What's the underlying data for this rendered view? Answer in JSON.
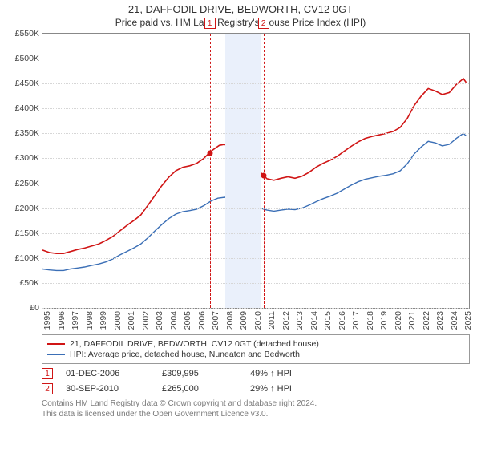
{
  "title_line1": "21, DAFFODIL DRIVE, BEDWORTH, CV12 0GT",
  "title_line2": "Price paid vs. HM Land Registry's House Price Index (HPI)",
  "chart": {
    "background_color": "#ffffff",
    "border_color": "#888888",
    "grid_color": "#d6d6d6",
    "yticks": [
      0,
      50,
      100,
      150,
      200,
      250,
      300,
      350,
      400,
      450,
      500,
      550
    ],
    "ytick_labels": [
      "£0",
      "£50K",
      "£100K",
      "£150K",
      "£200K",
      "£250K",
      "£300K",
      "£350K",
      "£400K",
      "£450K",
      "£500K",
      "£550K"
    ],
    "ylim": [
      0,
      550
    ],
    "x_years": [
      1995,
      1996,
      1997,
      1998,
      1999,
      2000,
      2001,
      2002,
      2003,
      2004,
      2005,
      2006,
      2007,
      2008,
      2009,
      2010,
      2011,
      2012,
      2013,
      2014,
      2015,
      2016,
      2017,
      2018,
      2019,
      2020,
      2021,
      2022,
      2023,
      2024,
      2025
    ],
    "xlim": [
      1995,
      2025.4
    ],
    "euroband": {
      "start": 2008.0,
      "end": 2010.6,
      "fill": "#eaf0fb"
    },
    "series": [
      {
        "id": "price_paid",
        "color": "#d01515",
        "width": 1.6,
        "label": "21, DAFFODIL DRIVE, BEDWORTH, CV12 0GT (detached house)",
        "points": [
          [
            1995.0,
            116
          ],
          [
            1995.5,
            111
          ],
          [
            1996.0,
            109
          ],
          [
            1996.5,
            109
          ],
          [
            1997.0,
            113
          ],
          [
            1997.5,
            117
          ],
          [
            1998.0,
            120
          ],
          [
            1998.5,
            124
          ],
          [
            1999.0,
            128
          ],
          [
            1999.5,
            135
          ],
          [
            2000.0,
            143
          ],
          [
            2000.5,
            154
          ],
          [
            2001.0,
            165
          ],
          [
            2001.5,
            175
          ],
          [
            2002.0,
            186
          ],
          [
            2002.5,
            205
          ],
          [
            2003.0,
            225
          ],
          [
            2003.5,
            245
          ],
          [
            2004.0,
            262
          ],
          [
            2004.5,
            275
          ],
          [
            2005.0,
            282
          ],
          [
            2005.5,
            285
          ],
          [
            2006.0,
            290
          ],
          [
            2006.5,
            300
          ],
          [
            2007.0,
            314
          ],
          [
            2007.3,
            320
          ],
          [
            2007.6,
            326
          ],
          [
            2008.0,
            328
          ],
          [
            2008.3,
            320
          ],
          [
            2008.6,
            302
          ],
          [
            2009.0,
            275
          ],
          [
            2009.4,
            268
          ],
          [
            2009.8,
            275
          ],
          [
            2010.2,
            278
          ],
          [
            2010.6,
            270
          ],
          [
            2011.0,
            259
          ],
          [
            2011.5,
            256
          ],
          [
            2012.0,
            260
          ],
          [
            2012.5,
            263
          ],
          [
            2013.0,
            260
          ],
          [
            2013.5,
            264
          ],
          [
            2014.0,
            272
          ],
          [
            2014.5,
            282
          ],
          [
            2015.0,
            290
          ],
          [
            2015.5,
            296
          ],
          [
            2016.0,
            304
          ],
          [
            2016.5,
            314
          ],
          [
            2017.0,
            324
          ],
          [
            2017.5,
            333
          ],
          [
            2018.0,
            340
          ],
          [
            2018.5,
            344
          ],
          [
            2019.0,
            347
          ],
          [
            2019.5,
            350
          ],
          [
            2020.0,
            354
          ],
          [
            2020.5,
            362
          ],
          [
            2021.0,
            380
          ],
          [
            2021.5,
            406
          ],
          [
            2022.0,
            425
          ],
          [
            2022.5,
            440
          ],
          [
            2023.0,
            435
          ],
          [
            2023.5,
            428
          ],
          [
            2024.0,
            432
          ],
          [
            2024.5,
            448
          ],
          [
            2025.0,
            460
          ],
          [
            2025.2,
            452
          ]
        ]
      },
      {
        "id": "hpi",
        "color": "#3b6fb6",
        "width": 1.4,
        "label": "HPI: Average price, detached house, Nuneaton and Bedworth",
        "points": [
          [
            1995.0,
            78
          ],
          [
            1995.5,
            76
          ],
          [
            1996.0,
            75
          ],
          [
            1996.5,
            75
          ],
          [
            1997.0,
            78
          ],
          [
            1997.5,
            80
          ],
          [
            1998.0,
            82
          ],
          [
            1998.5,
            85
          ],
          [
            1999.0,
            88
          ],
          [
            1999.5,
            92
          ],
          [
            2000.0,
            98
          ],
          [
            2000.5,
            106
          ],
          [
            2001.0,
            113
          ],
          [
            2001.5,
            120
          ],
          [
            2002.0,
            128
          ],
          [
            2002.5,
            140
          ],
          [
            2003.0,
            154
          ],
          [
            2003.5,
            167
          ],
          [
            2004.0,
            179
          ],
          [
            2004.5,
            188
          ],
          [
            2005.0,
            193
          ],
          [
            2005.5,
            195
          ],
          [
            2006.0,
            198
          ],
          [
            2006.5,
            205
          ],
          [
            2007.0,
            214
          ],
          [
            2007.5,
            220
          ],
          [
            2008.0,
            222
          ],
          [
            2008.5,
            214
          ],
          [
            2009.0,
            195
          ],
          [
            2009.5,
            192
          ],
          [
            2010.0,
            198
          ],
          [
            2010.5,
            200
          ],
          [
            2011.0,
            196
          ],
          [
            2011.5,
            194
          ],
          [
            2012.0,
            196
          ],
          [
            2012.5,
            198
          ],
          [
            2013.0,
            197
          ],
          [
            2013.5,
            200
          ],
          [
            2014.0,
            206
          ],
          [
            2014.5,
            213
          ],
          [
            2015.0,
            219
          ],
          [
            2015.5,
            224
          ],
          [
            2016.0,
            230
          ],
          [
            2016.5,
            238
          ],
          [
            2017.0,
            246
          ],
          [
            2017.5,
            253
          ],
          [
            2018.0,
            258
          ],
          [
            2018.5,
            261
          ],
          [
            2019.0,
            264
          ],
          [
            2019.5,
            266
          ],
          [
            2020.0,
            269
          ],
          [
            2020.5,
            275
          ],
          [
            2021.0,
            289
          ],
          [
            2021.5,
            309
          ],
          [
            2022.0,
            323
          ],
          [
            2022.5,
            334
          ],
          [
            2023.0,
            331
          ],
          [
            2023.5,
            325
          ],
          [
            2024.0,
            328
          ],
          [
            2024.5,
            340
          ],
          [
            2025.0,
            350
          ],
          [
            2025.2,
            345
          ]
        ]
      }
    ],
    "sale_markers": [
      {
        "n": "1",
        "x": 2006.92,
        "y": 310,
        "dash_color": "#d01515",
        "dot_color": "#d01515"
      },
      {
        "n": "2",
        "x": 2010.75,
        "y": 265,
        "dash_color": "#d01515",
        "dot_color": "#d01515"
      }
    ]
  },
  "legend": [
    {
      "color": "#d01515",
      "text": "21, DAFFODIL DRIVE, BEDWORTH, CV12 0GT (detached house)"
    },
    {
      "color": "#3b6fb6",
      "text": "HPI: Average price, detached house, Nuneaton and Bedworth"
    }
  ],
  "sales_rows": [
    {
      "n": "1",
      "date": "01-DEC-2006",
      "price": "£309,995",
      "rel": "49% ↑ HPI"
    },
    {
      "n": "2",
      "date": "30-SEP-2010",
      "price": "£265,000",
      "rel": "29% ↑ HPI"
    }
  ],
  "footer_line1": "Contains HM Land Registry data © Crown copyright and database right 2024.",
  "footer_line2": "This data is licensed under the Open Government Licence v3.0."
}
